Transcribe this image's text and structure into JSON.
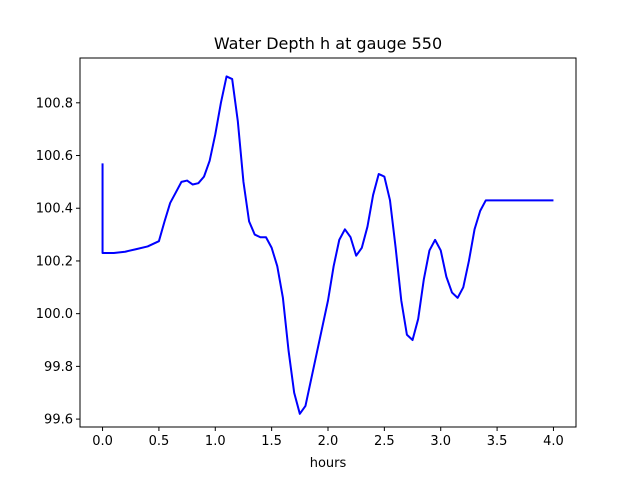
{
  "chart_data": {
    "type": "line",
    "title": "Water Depth h at gauge 550",
    "xlabel": "hours",
    "ylabel": "",
    "xlim": [
      -0.2,
      4.2
    ],
    "ylim": [
      99.57,
      100.97
    ],
    "xticks": [
      0.0,
      0.5,
      1.0,
      1.5,
      2.0,
      2.5,
      3.0,
      3.5,
      4.0
    ],
    "xtick_labels": [
      "0.0",
      "0.5",
      "1.0",
      "1.5",
      "2.0",
      "2.5",
      "3.0",
      "3.5",
      "4.0"
    ],
    "yticks": [
      99.6,
      99.8,
      100.0,
      100.2,
      100.4,
      100.6,
      100.8
    ],
    "ytick_labels": [
      "99.6",
      "99.8",
      "100.0",
      "100.2",
      "100.4",
      "100.6",
      "100.8"
    ],
    "grid": false,
    "color": "#0000ff",
    "series": [
      {
        "x": [
          0.0,
          0.0,
          0.1,
          0.2,
          0.3,
          0.4,
          0.5,
          0.55,
          0.6,
          0.65,
          0.7,
          0.75,
          0.8,
          0.85,
          0.9,
          0.95,
          1.0,
          1.05,
          1.1,
          1.15,
          1.2,
          1.25,
          1.3,
          1.35,
          1.4,
          1.45,
          1.5,
          1.55,
          1.6,
          1.65,
          1.7,
          1.75,
          1.8,
          1.85,
          1.9,
          1.95,
          2.0,
          2.05,
          2.1,
          2.15,
          2.2,
          2.25,
          2.3,
          2.35,
          2.4,
          2.45,
          2.5,
          2.55,
          2.6,
          2.65,
          2.7,
          2.75,
          2.8,
          2.85,
          2.9,
          2.95,
          3.0,
          3.05,
          3.1,
          3.15,
          3.2,
          3.25,
          3.3,
          3.35,
          3.4,
          3.45,
          3.5,
          3.55,
          3.6,
          3.65,
          3.7,
          3.75,
          3.8,
          3.85,
          3.9,
          3.95,
          4.0
        ],
        "y": [
          100.57,
          100.23,
          100.23,
          100.235,
          100.245,
          100.255,
          100.275,
          100.35,
          100.42,
          100.46,
          100.5,
          100.505,
          100.49,
          100.495,
          100.52,
          100.58,
          100.68,
          100.8,
          100.9,
          100.89,
          100.73,
          100.5,
          100.35,
          100.3,
          100.29,
          100.29,
          100.25,
          100.18,
          100.06,
          99.86,
          99.7,
          99.62,
          99.65,
          99.75,
          99.85,
          99.95,
          100.05,
          100.18,
          100.28,
          100.32,
          100.29,
          100.22,
          100.25,
          100.33,
          100.45,
          100.53,
          100.52,
          100.43,
          100.25,
          100.05,
          99.92,
          99.9,
          99.98,
          100.13,
          100.24,
          100.28,
          100.24,
          100.14,
          100.08,
          100.06,
          100.1,
          100.2,
          100.32,
          100.39,
          100.43,
          100.43,
          100.43,
          100.43,
          100.43,
          100.43,
          100.43,
          100.43,
          100.43,
          100.43,
          100.43,
          100.43,
          100.43
        ]
      }
    ]
  }
}
